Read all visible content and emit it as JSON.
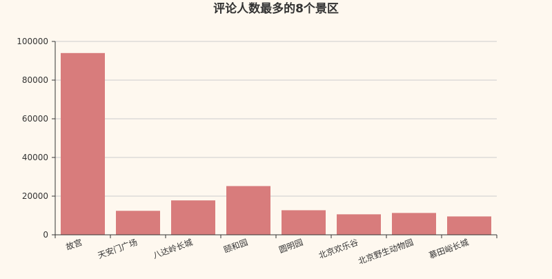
{
  "chart_data": {
    "type": "bar",
    "title": "评论人数最多的8个景区",
    "categories": [
      "故宫",
      "天安门广场",
      "八达岭长城",
      "颐和园",
      "圆明园",
      "北京欢乐谷",
      "北京野生动物园",
      "慕田峪长城"
    ],
    "values": [
      94000,
      12400,
      17800,
      25200,
      12700,
      10600,
      11300,
      9500
    ],
    "ylim": [
      0,
      100000
    ],
    "yticks": [
      0,
      20000,
      40000,
      60000,
      80000,
      100000
    ],
    "grid": true,
    "colors": {
      "bar": "#d87c7c",
      "grid": "#cccccc",
      "axis": "#333333",
      "label": "#333333",
      "background": "#fef8ef"
    }
  }
}
